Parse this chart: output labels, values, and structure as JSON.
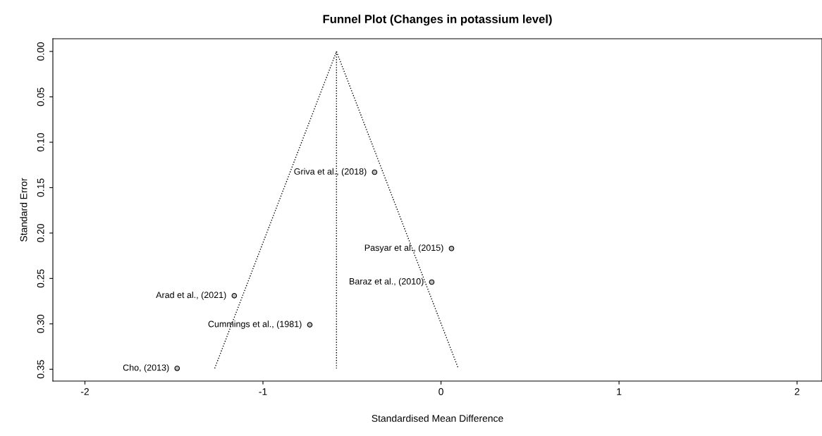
{
  "chart_data": {
    "type": "scatter",
    "title": "Funnel Plot (Changes in potassium level)",
    "xlabel": "Standardised Mean Difference",
    "ylabel": "Standard Error",
    "xlim": [
      -2.18,
      2.14
    ],
    "xticks": [
      -2,
      -1,
      0,
      1,
      2
    ],
    "ylim": [
      0.363,
      -0.014
    ],
    "yticks": [
      {
        "value": 0,
        "label": "0.00"
      },
      {
        "value": 0.05,
        "label": "0.05"
      },
      {
        "value": 0.1,
        "label": "0.10"
      },
      {
        "value": 0.15,
        "label": "0.15"
      },
      {
        "value": 0.2,
        "label": "0.20"
      },
      {
        "value": 0.25,
        "label": "0.25"
      },
      {
        "value": 0.3,
        "label": "0.30"
      },
      {
        "value": 0.35,
        "label": "0.35"
      }
    ],
    "grid": false,
    "legend": false,
    "series": [
      {
        "color": "#bebebe",
        "marker": "circle",
        "x": [
          -0.373,
          0.059,
          -0.052,
          -1.161,
          -0.737,
          -1.482
        ],
        "values": [
          0.133,
          0.217,
          0.254,
          0.269,
          0.301,
          0.349
        ]
      },
      {
        "type": "line",
        "color": "#000000",
        "line_style": "dotted",
        "marker": "none",
        "x": [
          -1.271,
          -0.587,
          0.097
        ],
        "values": [
          0.349,
          0,
          0.349
        ]
      },
      {
        "type": "line",
        "color": "#000000",
        "line_style": "dotted",
        "marker": "none",
        "x": [
          -0.587,
          -0.587
        ],
        "values": [
          0,
          0.349
        ]
      }
    ],
    "annotations": [
      {
        "text": "Griva et al., (2018)",
        "x": -0.373,
        "y": 0.133
      },
      {
        "text": "Pasyar et al., (2015)",
        "x": 0.059,
        "y": 0.217
      },
      {
        "text": "Baraz et al., (2010)",
        "x": -0.052,
        "y": 0.254
      },
      {
        "text": "Arad et al., (2021)",
        "x": -1.161,
        "y": 0.269
      },
      {
        "text": "Cummings et al., (1981)",
        "x": -0.737,
        "y": 0.301
      },
      {
        "text": "Cho, (2013)",
        "x": -1.482,
        "y": 0.349
      }
    ]
  }
}
